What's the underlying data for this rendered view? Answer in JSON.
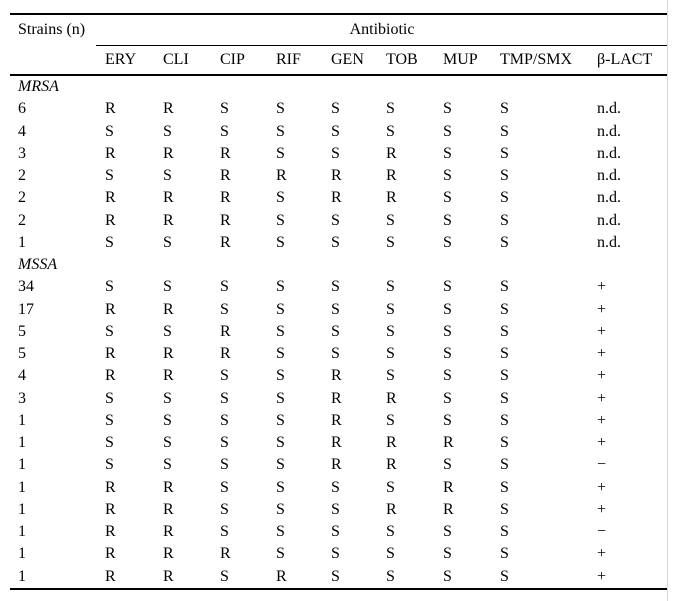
{
  "table": {
    "col1_header": "Strains (n)",
    "group_header": "Antibiotic",
    "antibiotic_columns": [
      "ERY",
      "CLI",
      "CIP",
      "RIF",
      "GEN",
      "TOB",
      "MUP",
      "TMP/SMX",
      "β-LACT"
    ],
    "sections": [
      {
        "label": "MRSA",
        "rows": [
          {
            "n": "6",
            "values": [
              "R",
              "R",
              "S",
              "S",
              "S",
              "S",
              "S",
              "S",
              "n.d."
            ]
          },
          {
            "n": "4",
            "values": [
              "S",
              "S",
              "S",
              "S",
              "S",
              "S",
              "S",
              "S",
              "n.d."
            ]
          },
          {
            "n": "3",
            "values": [
              "R",
              "R",
              "R",
              "S",
              "S",
              "R",
              "S",
              "S",
              "n.d."
            ]
          },
          {
            "n": "2",
            "values": [
              "S",
              "S",
              "R",
              "R",
              "R",
              "R",
              "S",
              "S",
              "n.d."
            ]
          },
          {
            "n": "2",
            "values": [
              "R",
              "R",
              "R",
              "S",
              "R",
              "R",
              "S",
              "S",
              "n.d."
            ]
          },
          {
            "n": "2",
            "values": [
              "R",
              "R",
              "R",
              "S",
              "S",
              "S",
              "S",
              "S",
              "n.d."
            ]
          },
          {
            "n": "1",
            "values": [
              "S",
              "S",
              "R",
              "S",
              "S",
              "S",
              "S",
              "S",
              "n.d."
            ]
          }
        ]
      },
      {
        "label": "MSSA",
        "rows": [
          {
            "n": "34",
            "values": [
              "S",
              "S",
              "S",
              "S",
              "S",
              "S",
              "S",
              "S",
              "+"
            ]
          },
          {
            "n": "17",
            "values": [
              "R",
              "R",
              "S",
              "S",
              "S",
              "S",
              "S",
              "S",
              "+"
            ]
          },
          {
            "n": "5",
            "values": [
              "S",
              "S",
              "R",
              "S",
              "S",
              "S",
              "S",
              "S",
              "+"
            ]
          },
          {
            "n": "5",
            "values": [
              "R",
              "R",
              "R",
              "S",
              "S",
              "S",
              "S",
              "S",
              "+"
            ]
          },
          {
            "n": "4",
            "values": [
              "R",
              "R",
              "S",
              "S",
              "R",
              "S",
              "S",
              "S",
              "+"
            ]
          },
          {
            "n": "3",
            "values": [
              "S",
              "S",
              "S",
              "S",
              "R",
              "R",
              "S",
              "S",
              "+"
            ]
          },
          {
            "n": "1",
            "values": [
              "S",
              "S",
              "S",
              "S",
              "R",
              "S",
              "S",
              "S",
              "+"
            ]
          },
          {
            "n": "1",
            "values": [
              "S",
              "S",
              "S",
              "S",
              "R",
              "R",
              "R",
              "S",
              "+"
            ]
          },
          {
            "n": "1",
            "values": [
              "S",
              "S",
              "S",
              "S",
              "R",
              "R",
              "S",
              "S",
              "−"
            ]
          },
          {
            "n": "1",
            "values": [
              "R",
              "R",
              "S",
              "S",
              "S",
              "S",
              "R",
              "S",
              "+"
            ]
          },
          {
            "n": "1",
            "values": [
              "R",
              "R",
              "S",
              "S",
              "S",
              "R",
              "R",
              "S",
              "+"
            ]
          },
          {
            "n": "1",
            "values": [
              "R",
              "R",
              "S",
              "S",
              "S",
              "S",
              "S",
              "S",
              "−"
            ]
          },
          {
            "n": "1",
            "values": [
              "R",
              "R",
              "R",
              "S",
              "S",
              "S",
              "S",
              "S",
              "+"
            ]
          },
          {
            "n": "1",
            "values": [
              "R",
              "R",
              "S",
              "R",
              "S",
              "S",
              "S",
              "S",
              "+"
            ]
          }
        ]
      }
    ]
  }
}
